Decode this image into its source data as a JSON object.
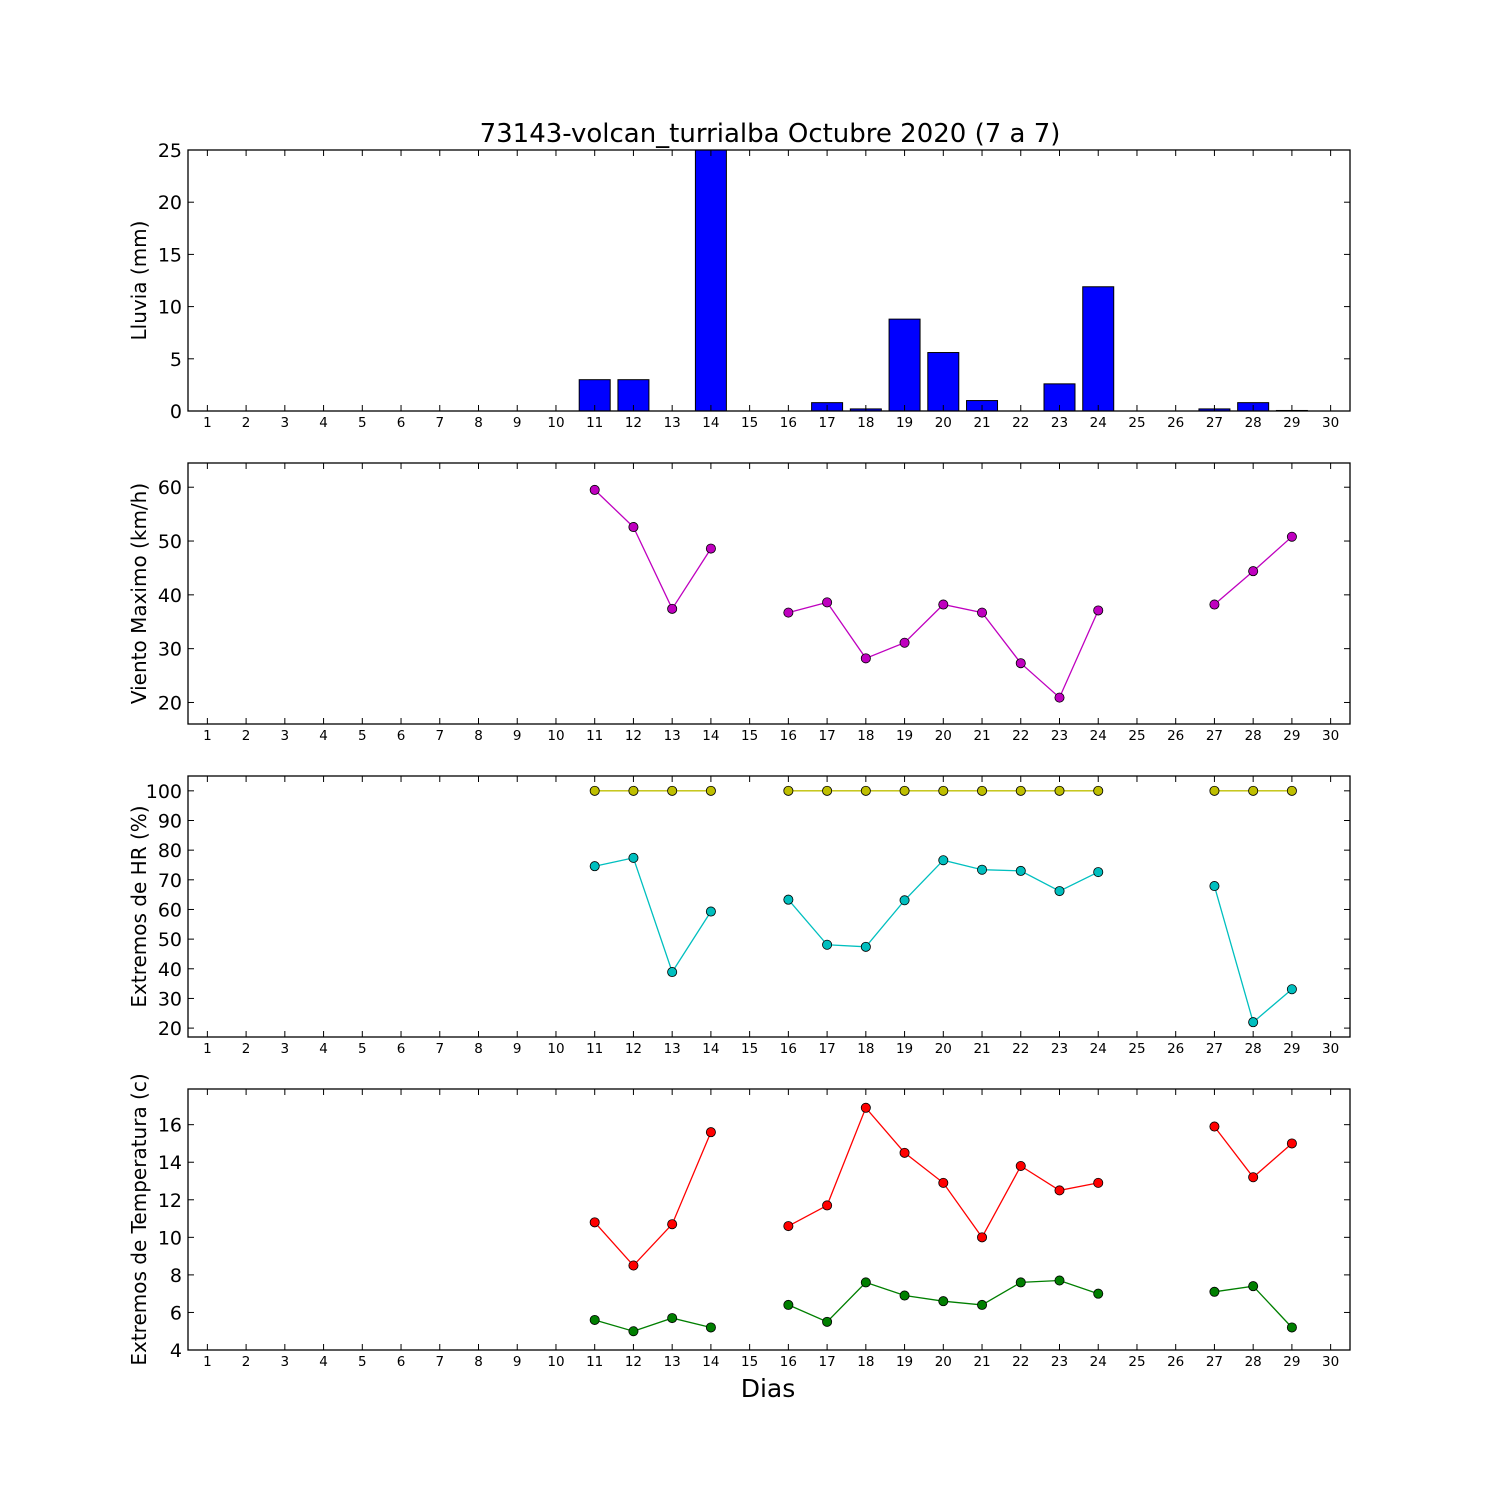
{
  "title": "73143-volcan_turrialba Octubre 2020  (7 a 7)",
  "xlabel": "Dias",
  "colors": {
    "rain": "#0000ff",
    "wind": "#bf00bf",
    "hr_max": "#bfbf00",
    "hr_min": "#00bfbf",
    "temp_max": "#ff0000",
    "temp_min": "#007f00"
  },
  "chart_data": [
    {
      "type": "bar",
      "ylabel": "Lluvia (mm)",
      "ylim": [
        0,
        25
      ],
      "yticks": [
        0,
        5,
        10,
        15,
        20,
        25
      ],
      "xlim": [
        0.5,
        30.5
      ],
      "xticks": [
        1,
        2,
        3,
        4,
        5,
        6,
        7,
        8,
        9,
        10,
        11,
        12,
        13,
        14,
        15,
        16,
        17,
        18,
        19,
        20,
        21,
        22,
        23,
        24,
        25,
        26,
        27,
        28,
        29,
        30
      ],
      "categories": [
        11,
        12,
        14,
        17,
        18,
        19,
        20,
        21,
        23,
        24,
        27,
        28,
        29
      ],
      "series": [
        {
          "color": "#0000ff",
          "values": [
            3.0,
            3.0,
            25.0,
            0.8,
            0.2,
            8.8,
            5.6,
            1.0,
            2.6,
            11.9,
            0.2,
            0.8,
            0.05
          ]
        }
      ]
    },
    {
      "type": "line",
      "ylabel": "Viento Maximo (km/h)",
      "ylim": [
        16,
        64.5
      ],
      "yticks": [
        20,
        30,
        40,
        50,
        60
      ],
      "xlim": [
        0.5,
        30.5
      ],
      "xticks": [
        1,
        2,
        3,
        4,
        5,
        6,
        7,
        8,
        9,
        10,
        11,
        12,
        13,
        14,
        15,
        16,
        17,
        18,
        19,
        20,
        21,
        22,
        23,
        24,
        25,
        26,
        27,
        28,
        29,
        30
      ],
      "series": [
        {
          "color": "#bf00bf",
          "segments": [
            [
              [
                11,
                59.5
              ],
              [
                12,
                52.6
              ],
              [
                13,
                37.4
              ],
              [
                14,
                48.6
              ]
            ],
            [
              [
                16,
                36.7
              ],
              [
                17,
                38.6
              ],
              [
                18,
                28.2
              ],
              [
                19,
                31.1
              ],
              [
                20,
                38.2
              ],
              [
                21,
                36.7
              ],
              [
                22,
                27.3
              ],
              [
                23,
                20.9
              ],
              [
                24,
                37.1
              ]
            ],
            [
              [
                27,
                38.2
              ],
              [
                28,
                44.4
              ],
              [
                29,
                50.8
              ]
            ]
          ]
        }
      ]
    },
    {
      "type": "line",
      "ylabel": "Extremos de HR (%)",
      "ylim": [
        17,
        105
      ],
      "yticks": [
        20,
        30,
        40,
        50,
        60,
        70,
        80,
        90,
        100
      ],
      "xlim": [
        0.5,
        30.5
      ],
      "xticks": [
        1,
        2,
        3,
        4,
        5,
        6,
        7,
        8,
        9,
        10,
        11,
        12,
        13,
        14,
        15,
        16,
        17,
        18,
        19,
        20,
        21,
        22,
        23,
        24,
        25,
        26,
        27,
        28,
        29,
        30
      ],
      "series": [
        {
          "color": "#bfbf00",
          "segments": [
            [
              [
                11,
                100
              ],
              [
                12,
                100
              ],
              [
                13,
                100
              ],
              [
                14,
                100
              ]
            ],
            [
              [
                16,
                100
              ],
              [
                17,
                100
              ],
              [
                18,
                100
              ],
              [
                19,
                100
              ],
              [
                20,
                100
              ],
              [
                21,
                100
              ],
              [
                22,
                100
              ],
              [
                23,
                100
              ],
              [
                24,
                100
              ]
            ],
            [
              [
                27,
                100
              ],
              [
                28,
                100
              ],
              [
                29,
                100
              ]
            ]
          ]
        },
        {
          "color": "#00bfbf",
          "segments": [
            [
              [
                11,
                74.6
              ],
              [
                12,
                77.4
              ],
              [
                13,
                38.9
              ],
              [
                14,
                59.3
              ]
            ],
            [
              [
                16,
                63.3
              ],
              [
                17,
                48.1
              ],
              [
                18,
                47.4
              ],
              [
                19,
                63.1
              ],
              [
                20,
                76.6
              ],
              [
                21,
                73.4
              ],
              [
                22,
                73.0
              ],
              [
                23,
                66.2
              ],
              [
                24,
                72.6
              ]
            ],
            [
              [
                27,
                67.9
              ],
              [
                28,
                22.0
              ],
              [
                29,
                33.1
              ]
            ]
          ]
        }
      ]
    },
    {
      "type": "line",
      "ylabel": "Extremos de Temperatura (c)",
      "ylim": [
        4,
        17.9
      ],
      "yticks": [
        4,
        6,
        8,
        10,
        12,
        14,
        16
      ],
      "xlim": [
        0.5,
        30.5
      ],
      "xticks": [
        1,
        2,
        3,
        4,
        5,
        6,
        7,
        8,
        9,
        10,
        11,
        12,
        13,
        14,
        15,
        16,
        17,
        18,
        19,
        20,
        21,
        22,
        23,
        24,
        25,
        26,
        27,
        28,
        29,
        30
      ],
      "series": [
        {
          "color": "#ff0000",
          "segments": [
            [
              [
                11,
                10.8
              ],
              [
                12,
                8.5
              ],
              [
                13,
                10.7
              ],
              [
                14,
                15.6
              ]
            ],
            [
              [
                16,
                10.6
              ],
              [
                17,
                11.7
              ],
              [
                18,
                16.9
              ],
              [
                19,
                14.5
              ],
              [
                20,
                12.9
              ],
              [
                21,
                10.0
              ],
              [
                22,
                13.8
              ],
              [
                23,
                12.5
              ],
              [
                24,
                12.9
              ]
            ],
            [
              [
                27,
                15.9
              ],
              [
                28,
                13.2
              ],
              [
                29,
                15.0
              ]
            ]
          ]
        },
        {
          "color": "#007f00",
          "segments": [
            [
              [
                11,
                5.6
              ],
              [
                12,
                5.0
              ],
              [
                13,
                5.7
              ],
              [
                14,
                5.2
              ]
            ],
            [
              [
                16,
                6.4
              ],
              [
                17,
                5.5
              ],
              [
                18,
                7.6
              ],
              [
                19,
                6.9
              ],
              [
                20,
                6.6
              ],
              [
                21,
                6.4
              ],
              [
                22,
                7.6
              ],
              [
                23,
                7.7
              ],
              [
                24,
                7.0
              ]
            ],
            [
              [
                27,
                7.1
              ],
              [
                28,
                7.4
              ],
              [
                29,
                5.2
              ]
            ]
          ]
        }
      ]
    }
  ]
}
